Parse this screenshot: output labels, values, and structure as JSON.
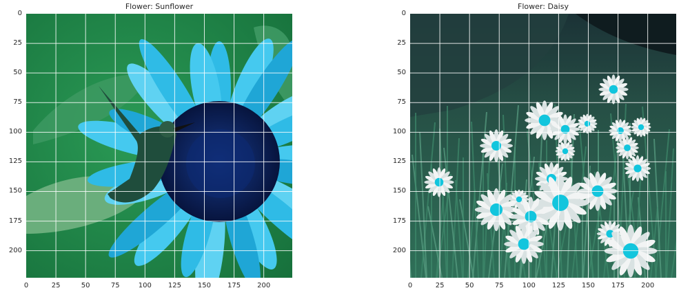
{
  "figure": {
    "panels": [
      {
        "title": "Flower: Sunflower",
        "scene": "sunflower",
        "x_ticks": [
          "0",
          "25",
          "50",
          "75",
          "100",
          "125",
          "150",
          "175",
          "200"
        ],
        "y_ticks": [
          "0",
          "25",
          "50",
          "75",
          "100",
          "125",
          "150",
          "175",
          "200"
        ],
        "colors": {
          "background": "#22894a",
          "petal": "#2fbbe6",
          "center": "#0b1f5c",
          "leaf": "#5fa872",
          "bird": "#1e4a3a"
        }
      },
      {
        "title": "Flower: Daisy",
        "scene": "daisy",
        "x_ticks": [
          "0",
          "25",
          "50",
          "75",
          "100",
          "125",
          "150",
          "175",
          "200"
        ],
        "y_ticks": [
          "0",
          "25",
          "50",
          "75",
          "100",
          "125",
          "150",
          "175",
          "200"
        ],
        "colors": {
          "background": "#1f4a3a",
          "petal": "#f2f4f4",
          "center": "#12c5dd",
          "grass": "#2e6e5a",
          "bark": "#1a2f32"
        }
      }
    ]
  }
}
